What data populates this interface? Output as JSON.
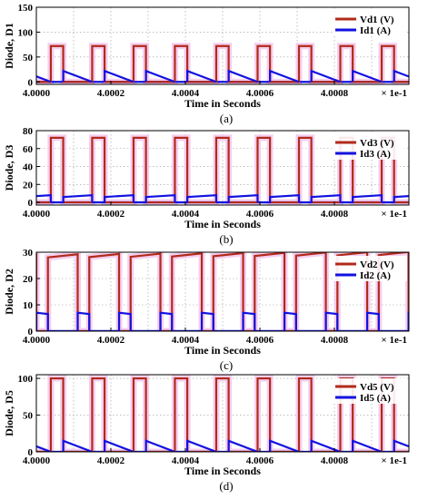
{
  "colors": {
    "voltage": "#b22a1a",
    "current": "#1212e0",
    "glow": "#f3c6ec",
    "grid": "#9a9a9a"
  },
  "chart_data": [
    {
      "type": "line",
      "caption": "(a)",
      "xlabel": "Time in Seconds",
      "ylabel": "Diode, D1",
      "x_multiplier": "× 1e-1",
      "xlim": [
        4.0,
        4.001
      ],
      "ylim": [
        -5,
        150
      ],
      "yticks": [
        "150",
        "100",
        "50",
        "0"
      ],
      "yticks_values": [
        150,
        100,
        50,
        0
      ],
      "xticks": [
        "4.0000",
        "4.0002",
        "4.0004",
        "4.0006",
        "4.0008"
      ],
      "xticks_values": [
        4.0,
        4.0002,
        4.0004,
        4.0006,
        4.0008
      ],
      "grid": true,
      "legend_position": "top-right",
      "period": 0.000111,
      "on_duty": 0.3,
      "phase": 0.35,
      "series": [
        {
          "name": "Vd1 (V)",
          "kind": "voltage",
          "high": 72,
          "low": 0
        },
        {
          "name": "Id1 (A)",
          "kind": "current",
          "shape": "decay",
          "peak": 22,
          "end": 0
        }
      ]
    },
    {
      "type": "line",
      "caption": "(b)",
      "xlabel": "Time in Seconds",
      "ylabel": "Diode, D3",
      "x_multiplier": "× 1e-1",
      "xlim": [
        4.0,
        4.001
      ],
      "ylim": [
        -3,
        80
      ],
      "yticks": [
        "80",
        "60",
        "40",
        "20",
        "0"
      ],
      "yticks_values": [
        80,
        60,
        40,
        20,
        0
      ],
      "xticks": [
        "4.0000",
        "4.0002",
        "4.0004",
        "4.0006",
        "4.0008"
      ],
      "xticks_values": [
        4.0,
        4.0002,
        4.0004,
        4.0006,
        4.0008
      ],
      "grid": true,
      "legend_position": "top-right",
      "period": 0.000111,
      "on_duty": 0.3,
      "phase": 0.35,
      "series": [
        {
          "name": "Vd3 (V)",
          "kind": "voltage",
          "high": 72,
          "low": 0
        },
        {
          "name": "Id3 (A)",
          "kind": "current",
          "shape": "rise",
          "start": 6,
          "end": 8
        }
      ]
    },
    {
      "type": "line",
      "caption": "(c)",
      "xlabel": "Time in Seconds",
      "ylabel": "Diode, D2",
      "x_multiplier": "× 1e-1",
      "xlim": [
        4.0,
        4.001
      ],
      "ylim": [
        0,
        30
      ],
      "yticks": [
        "30",
        "20",
        "10",
        "0"
      ],
      "yticks_values": [
        30,
        20,
        10,
        0
      ],
      "xticks": [
        "4.0000",
        "4.0002",
        "4.0004",
        "4.0006",
        "4.0008"
      ],
      "xticks_values": [
        4.0,
        4.0002,
        4.0004,
        4.0006,
        4.0008
      ],
      "grid": true,
      "legend_position": "top-right",
      "period": 0.000111,
      "on_duty": 0.72,
      "phase": 0.28,
      "series": [
        {
          "name": "Vd2 (V)",
          "kind": "voltage",
          "high_start": 28,
          "high_end": 29,
          "low": 0
        },
        {
          "name": "Id2 (A)",
          "kind": "current",
          "shape": "pulse",
          "start": 7,
          "end": 6.5
        }
      ]
    },
    {
      "type": "line",
      "caption": "(d)",
      "xlabel": "Time in Seconds",
      "ylabel": "Diode, D5",
      "x_multiplier": "× 1e-1",
      "xlim": [
        4.0,
        4.001
      ],
      "ylim": [
        0,
        105
      ],
      "yticks": [
        "100",
        "50",
        "0"
      ],
      "yticks_values": [
        100,
        50,
        0
      ],
      "xticks": [
        "4.0000",
        "4.0002",
        "4.0004",
        "4.0006",
        "4.0008"
      ],
      "xticks_values": [
        4.0,
        4.0002,
        4.0004,
        4.0006,
        4.0008
      ],
      "grid": true,
      "legend_position": "top-right",
      "period": 0.000111,
      "on_duty": 0.3,
      "phase": 0.35,
      "series": [
        {
          "name": "Vd5 (V)",
          "kind": "voltage",
          "high": 100,
          "low": 0
        },
        {
          "name": "Id5 (A)",
          "kind": "current",
          "shape": "decay",
          "peak": 15,
          "end": 0
        }
      ]
    }
  ]
}
